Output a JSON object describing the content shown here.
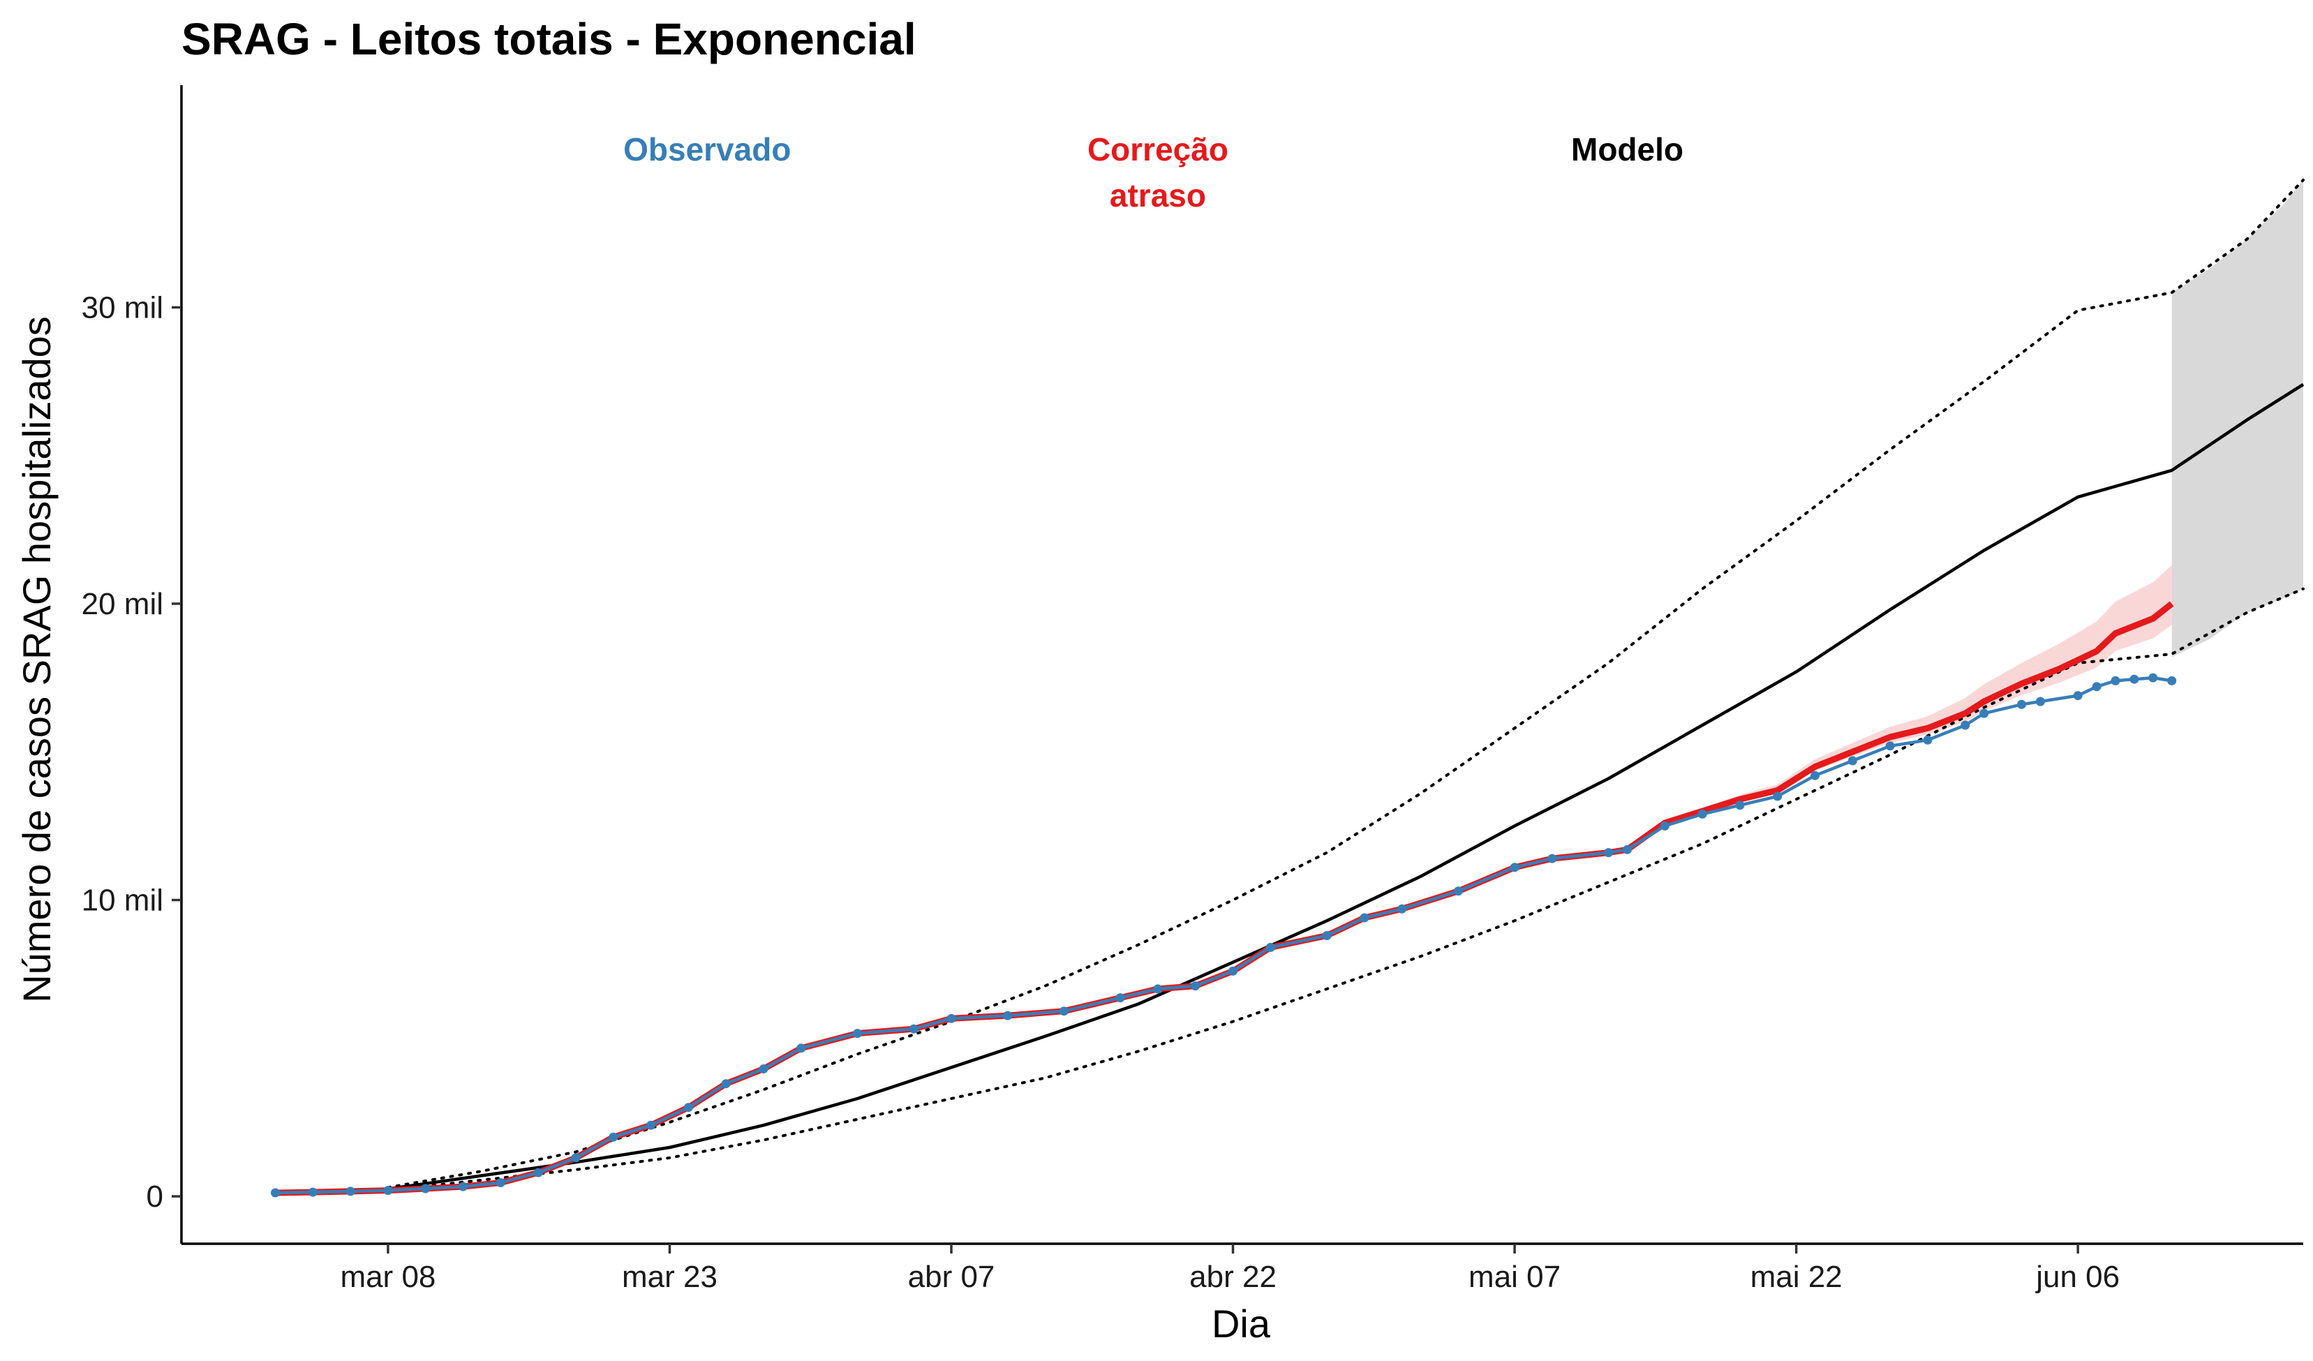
{
  "title": "SRAG - Leitos totais - Exponencial",
  "chart_data": {
    "type": "line",
    "title": "SRAG - Leitos totais - Exponencial",
    "xlabel": "Dia",
    "ylabel": "Número de casos SRAG hospitalizados",
    "x_range": [
      "2020-02-26",
      "2020-06-18"
    ],
    "ylim": [
      -1600,
      37500
    ],
    "x_ticks": [
      {
        "date": "2020-03-08",
        "label": "mar 08"
      },
      {
        "date": "2020-03-23",
        "label": "mar 23"
      },
      {
        "date": "2020-04-07",
        "label": "abr 07"
      },
      {
        "date": "2020-04-22",
        "label": "abr 22"
      },
      {
        "date": "2020-05-07",
        "label": "mai 07"
      },
      {
        "date": "2020-05-22",
        "label": "mai 22"
      },
      {
        "date": "2020-06-06",
        "label": "jun 06"
      }
    ],
    "y_ticks": [
      {
        "value": 0,
        "label": "0"
      },
      {
        "value": 10000,
        "label": "10 mil"
      },
      {
        "value": 20000,
        "label": "20 mil"
      },
      {
        "value": 30000,
        "label": "30 mil"
      }
    ],
    "grid": false,
    "legend": "none",
    "annotations": [
      {
        "text_lines": [
          "Observado"
        ],
        "color": "#377eb8",
        "date": "2020-03-25"
      },
      {
        "text_lines": [
          "Correção",
          "atraso"
        ],
        "color": "#e41a1c",
        "date": "2020-04-18"
      },
      {
        "text_lines": [
          "Modelo"
        ],
        "color": "#000000",
        "date": "2020-05-13"
      }
    ],
    "series": [
      {
        "key": "observado",
        "color": "#377eb8",
        "points": [
          [
            "2020-03-02",
            120
          ],
          [
            "2020-03-04",
            140
          ],
          [
            "2020-03-06",
            170
          ],
          [
            "2020-03-08",
            200
          ],
          [
            "2020-03-10",
            260
          ],
          [
            "2020-03-12",
            330
          ],
          [
            "2020-03-14",
            460
          ],
          [
            "2020-03-16",
            800
          ],
          [
            "2020-03-18",
            1300
          ],
          [
            "2020-03-20",
            2000
          ],
          [
            "2020-03-22",
            2400
          ],
          [
            "2020-03-24",
            3000
          ],
          [
            "2020-03-26",
            3800
          ],
          [
            "2020-03-28",
            4300
          ],
          [
            "2020-03-30",
            5000
          ],
          [
            "2020-04-02",
            5500
          ],
          [
            "2020-04-05",
            5650
          ],
          [
            "2020-04-07",
            6000
          ],
          [
            "2020-04-10",
            6100
          ],
          [
            "2020-04-13",
            6250
          ],
          [
            "2020-04-16",
            6700
          ],
          [
            "2020-04-18",
            7000
          ],
          [
            "2020-04-20",
            7100
          ],
          [
            "2020-04-22",
            7600
          ],
          [
            "2020-04-24",
            8400
          ],
          [
            "2020-04-27",
            8800
          ],
          [
            "2020-04-29",
            9400
          ],
          [
            "2020-05-01",
            9700
          ],
          [
            "2020-05-04",
            10300
          ],
          [
            "2020-05-07",
            11100
          ],
          [
            "2020-05-09",
            11400
          ],
          [
            "2020-05-12",
            11600
          ],
          [
            "2020-05-13",
            11700
          ],
          [
            "2020-05-15",
            12500
          ],
          [
            "2020-05-17",
            12900
          ],
          [
            "2020-05-19",
            13200
          ],
          [
            "2020-05-21",
            13500
          ],
          [
            "2020-05-23",
            14200
          ],
          [
            "2020-05-25",
            14700
          ],
          [
            "2020-05-27",
            15200
          ],
          [
            "2020-05-29",
            15400
          ],
          [
            "2020-05-31",
            15900
          ],
          [
            "2020-06-01",
            16300
          ],
          [
            "2020-06-03",
            16600
          ],
          [
            "2020-06-04",
            16700
          ],
          [
            "2020-06-06",
            16900
          ],
          [
            "2020-06-07",
            17200
          ],
          [
            "2020-06-08",
            17400
          ],
          [
            "2020-06-09",
            17450
          ],
          [
            "2020-06-10",
            17500
          ],
          [
            "2020-06-11",
            17400
          ]
        ]
      },
      {
        "key": "correcao",
        "color": "#e41a1c",
        "points": [
          [
            "2020-03-02",
            120
          ],
          [
            "2020-03-04",
            140
          ],
          [
            "2020-03-06",
            170
          ],
          [
            "2020-03-08",
            200
          ],
          [
            "2020-03-10",
            260
          ],
          [
            "2020-03-12",
            330
          ],
          [
            "2020-03-14",
            460
          ],
          [
            "2020-03-16",
            800
          ],
          [
            "2020-03-18",
            1300
          ],
          [
            "2020-03-20",
            2000
          ],
          [
            "2020-03-22",
            2400
          ],
          [
            "2020-03-24",
            3000
          ],
          [
            "2020-03-26",
            3800
          ],
          [
            "2020-03-28",
            4300
          ],
          [
            "2020-03-30",
            5000
          ],
          [
            "2020-04-02",
            5500
          ],
          [
            "2020-04-05",
            5650
          ],
          [
            "2020-04-07",
            6000
          ],
          [
            "2020-04-10",
            6100
          ],
          [
            "2020-04-13",
            6250
          ],
          [
            "2020-04-16",
            6700
          ],
          [
            "2020-04-18",
            7000
          ],
          [
            "2020-04-20",
            7100
          ],
          [
            "2020-04-22",
            7600
          ],
          [
            "2020-04-24",
            8400
          ],
          [
            "2020-04-27",
            8800
          ],
          [
            "2020-04-29",
            9400
          ],
          [
            "2020-05-01",
            9700
          ],
          [
            "2020-05-04",
            10300
          ],
          [
            "2020-05-07",
            11100
          ],
          [
            "2020-05-09",
            11400
          ],
          [
            "2020-05-12",
            11600
          ],
          [
            "2020-05-13",
            11700
          ],
          [
            "2020-05-15",
            12600
          ],
          [
            "2020-05-17",
            13000
          ],
          [
            "2020-05-19",
            13400
          ],
          [
            "2020-05-21",
            13700
          ],
          [
            "2020-05-23",
            14500
          ],
          [
            "2020-05-25",
            15000
          ],
          [
            "2020-05-27",
            15500
          ],
          [
            "2020-05-29",
            15800
          ],
          [
            "2020-05-31",
            16300
          ],
          [
            "2020-06-01",
            16700
          ],
          [
            "2020-06-03",
            17300
          ],
          [
            "2020-06-05",
            17800
          ],
          [
            "2020-06-07",
            18400
          ],
          [
            "2020-06-08",
            19000
          ],
          [
            "2020-06-10",
            19500
          ],
          [
            "2020-06-11",
            20000
          ]
        ],
        "band_spread": [
          [
            "2020-05-13",
            0
          ],
          [
            "2020-05-21",
            200
          ],
          [
            "2020-05-29",
            400
          ],
          [
            "2020-06-03",
            700
          ],
          [
            "2020-06-07",
            1000
          ],
          [
            "2020-06-11",
            1300
          ]
        ]
      },
      {
        "key": "modelo",
        "color": "#000000",
        "points": [
          [
            "2020-03-08",
            250
          ],
          [
            "2020-03-13",
            700
          ],
          [
            "2020-03-18",
            1150
          ],
          [
            "2020-03-23",
            1650
          ],
          [
            "2020-03-28",
            2400
          ],
          [
            "2020-04-02",
            3300
          ],
          [
            "2020-04-07",
            4350
          ],
          [
            "2020-04-12",
            5400
          ],
          [
            "2020-04-17",
            6500
          ],
          [
            "2020-04-22",
            7900
          ],
          [
            "2020-04-27",
            9300
          ],
          [
            "2020-05-02",
            10800
          ],
          [
            "2020-05-07",
            12500
          ],
          [
            "2020-05-12",
            14100
          ],
          [
            "2020-05-17",
            15900
          ],
          [
            "2020-05-22",
            17700
          ],
          [
            "2020-05-27",
            19800
          ],
          [
            "2020-06-01",
            21800
          ],
          [
            "2020-06-06",
            23600
          ],
          [
            "2020-06-11",
            24500
          ],
          [
            "2020-06-15",
            26200
          ],
          [
            "2020-06-18",
            27400
          ]
        ]
      },
      {
        "key": "modelo_superior",
        "color": "#000000",
        "dotted": true,
        "points": [
          [
            "2020-03-08",
            300
          ],
          [
            "2020-03-13",
            850
          ],
          [
            "2020-03-18",
            1500
          ],
          [
            "2020-03-23",
            2500
          ],
          [
            "2020-03-28",
            3600
          ],
          [
            "2020-04-02",
            4800
          ],
          [
            "2020-04-07",
            5900
          ],
          [
            "2020-04-12",
            7100
          ],
          [
            "2020-04-17",
            8500
          ],
          [
            "2020-04-22",
            10000
          ],
          [
            "2020-04-27",
            11600
          ],
          [
            "2020-05-02",
            13600
          ],
          [
            "2020-05-07",
            15800
          ],
          [
            "2020-05-12",
            18000
          ],
          [
            "2020-05-17",
            20500
          ],
          [
            "2020-05-22",
            22800
          ],
          [
            "2020-05-27",
            25200
          ],
          [
            "2020-06-01",
            27500
          ],
          [
            "2020-06-06",
            29900
          ],
          [
            "2020-06-11",
            30500
          ],
          [
            "2020-06-15",
            32300
          ],
          [
            "2020-06-18",
            34300
          ]
        ]
      },
      {
        "key": "modelo_inferior",
        "color": "#000000",
        "dotted": true,
        "points": [
          [
            "2020-03-08",
            200
          ],
          [
            "2020-03-13",
            550
          ],
          [
            "2020-03-18",
            900
          ],
          [
            "2020-03-23",
            1300
          ],
          [
            "2020-03-28",
            1900
          ],
          [
            "2020-04-02",
            2600
          ],
          [
            "2020-04-07",
            3300
          ],
          [
            "2020-04-12",
            4000
          ],
          [
            "2020-04-17",
            4900
          ],
          [
            "2020-04-22",
            5900
          ],
          [
            "2020-04-27",
            7000
          ],
          [
            "2020-05-02",
            8100
          ],
          [
            "2020-05-07",
            9300
          ],
          [
            "2020-05-12",
            10600
          ],
          [
            "2020-05-17",
            11900
          ],
          [
            "2020-05-22",
            13400
          ],
          [
            "2020-05-27",
            14900
          ],
          [
            "2020-06-01",
            16500
          ],
          [
            "2020-06-06",
            18000
          ],
          [
            "2020-06-11",
            18300
          ],
          [
            "2020-06-15",
            19700
          ],
          [
            "2020-06-18",
            20500
          ]
        ]
      }
    ],
    "forecast_band": {
      "color": "#d9d9d9",
      "points": [
        [
          "2020-06-11",
          18200,
          30500
        ],
        [
          "2020-06-13",
          18800,
          31300
        ],
        [
          "2020-06-15",
          19700,
          32300
        ],
        [
          "2020-06-17",
          20200,
          33500
        ],
        [
          "2020-06-18",
          20500,
          34300
        ]
      ]
    }
  }
}
